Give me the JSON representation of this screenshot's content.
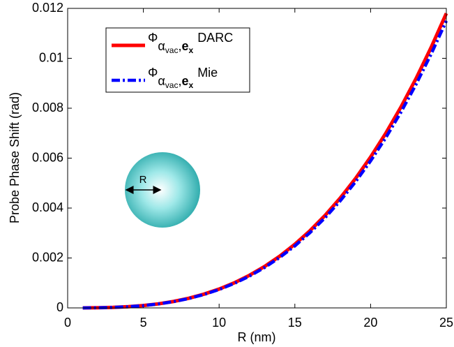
{
  "chart_data": {
    "type": "line",
    "xlabel": "R (nm)",
    "ylabel": "Probe Phase Shift (rad)",
    "x": [
      1,
      2,
      3,
      4,
      5,
      6,
      7,
      8,
      9,
      10,
      11,
      12,
      13,
      14,
      15,
      16,
      17,
      18,
      19,
      20,
      21,
      22,
      23,
      24,
      25
    ],
    "series": [
      {
        "name": "DARC",
        "color": "#ff0000",
        "values": [
          8e-07,
          6e-06,
          2e-05,
          4.8e-05,
          9.4e-05,
          0.000163,
          0.000259,
          0.000387,
          0.000551,
          0.000755,
          0.001005,
          0.001305,
          0.001659,
          0.002072,
          0.002549,
          0.003093,
          0.00371,
          0.004404,
          0.00518,
          0.006042,
          0.006994,
          0.008041,
          0.009188,
          0.01044,
          0.0118
        ]
      },
      {
        "name": "Mie",
        "color": "#0000ff",
        "values": [
          7e-07,
          6e-06,
          2e-05,
          4.7e-05,
          9.2e-05,
          0.000159,
          0.000252,
          0.000377,
          0.000537,
          0.000736,
          0.00098,
          0.001272,
          0.001617,
          0.00202,
          0.002484,
          0.003015,
          0.003616,
          0.004292,
          0.005048,
          0.005888,
          0.006816,
          0.007837,
          0.008955,
          0.010174,
          0.0115
        ]
      }
    ],
    "legend_prefix": [
      "Φ",
      "α",
      "vac",
      ",",
      "e",
      "x"
    ],
    "annotation": "R",
    "xlim": [
      0,
      25
    ],
    "xticks": [
      0,
      5,
      10,
      15,
      20,
      25
    ],
    "ylim": [
      0,
      0.012
    ],
    "yticks": [
      0,
      0.002,
      0.004,
      0.006,
      0.008,
      0.01,
      0.012
    ],
    "legend": "upper left",
    "grid": false
  }
}
